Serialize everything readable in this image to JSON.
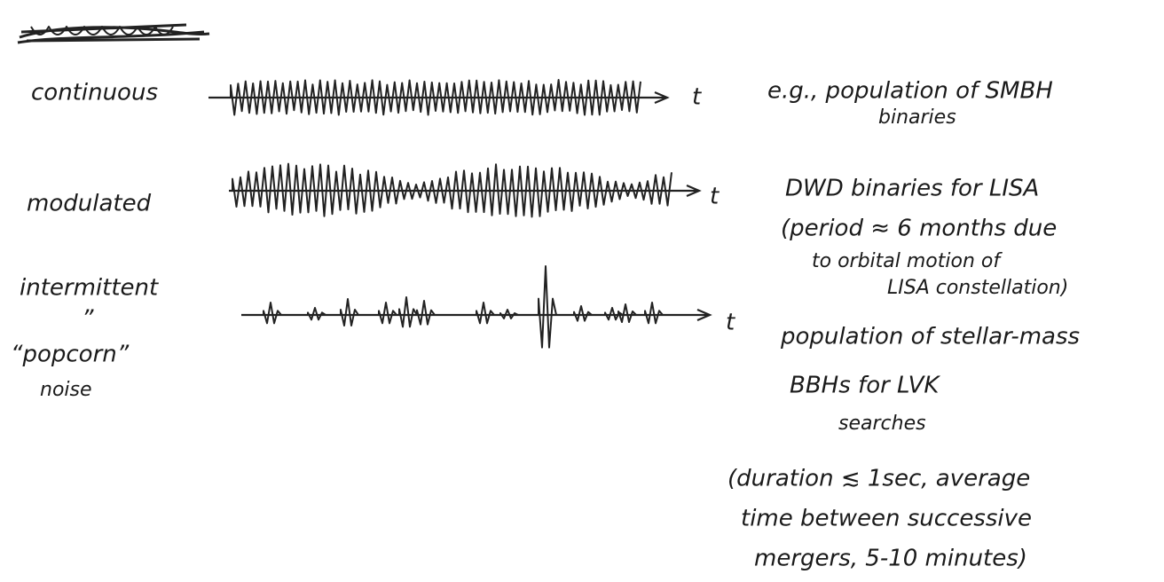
{
  "rows": [
    {
      "label": [
        "continuous"
      ],
      "axis_label": "t",
      "description": [
        "e.g., population of SMBH",
        "binaries"
      ]
    },
    {
      "label": [
        "modulated"
      ],
      "axis_label": "t",
      "description": [
        "DWD binaries for LISA",
        "(period ≈ 6 months due",
        "to orbital motion of",
        "LISA constellation)"
      ]
    },
    {
      "label": [
        "intermittent",
        "”",
        "“popcorn”",
        "noise"
      ],
      "axis_label": "t",
      "description": [
        "population of stellar-mass",
        "BBHs for LVK",
        "searches",
        "(duration ≲ 1sec, average",
        "time between successive",
        "mergers, 5-10 minutes)"
      ]
    }
  ]
}
